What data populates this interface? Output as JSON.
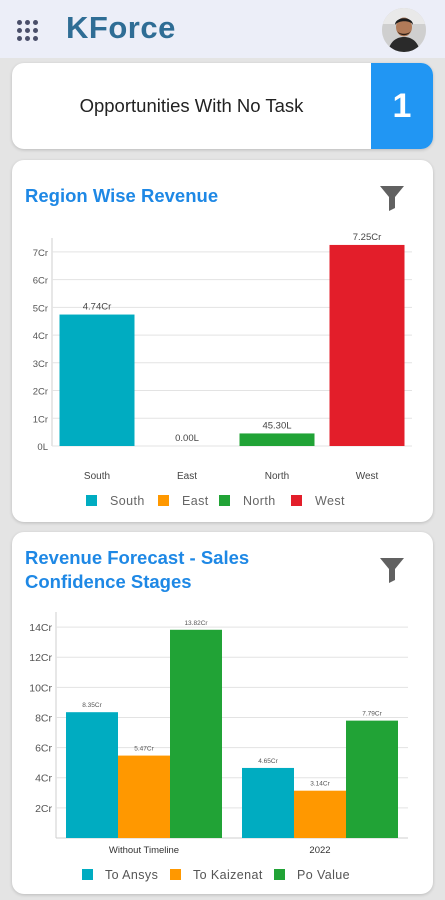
{
  "app": {
    "brand": "KForce",
    "icons": {
      "menu": "grid-menu-icon",
      "avatar": "avatar",
      "filter": "filter-icon"
    }
  },
  "opportunities": {
    "label": "Opportunities With No Task",
    "count": "1"
  },
  "region_chart": {
    "title": "Region Wise Revenue",
    "chart_data": {
      "type": "bar",
      "categories": [
        "South",
        "East",
        "North",
        "West"
      ],
      "values": [
        4.74,
        0.0,
        0.453,
        7.25
      ],
      "unit": "Cr",
      "data_labels": [
        "4.74Cr",
        "0.00L",
        "45.30L",
        "7.25Cr"
      ],
      "yticks": [
        "0L",
        "1Cr",
        "2Cr",
        "3Cr",
        "4Cr",
        "5Cr",
        "6Cr",
        "7Cr"
      ],
      "ylim": [
        0,
        7.5
      ],
      "colors": [
        "#00acc1",
        "#ff9800",
        "#21a336",
        "#e31e2a"
      ],
      "legend": [
        "South",
        "East",
        "North",
        "West"
      ],
      "legend_position": "bottom",
      "grid": true
    }
  },
  "forecast_chart": {
    "title": "Revenue Forecast - Sales Confidence Stages",
    "chart_data": {
      "type": "bar",
      "categories": [
        "Without Timeline",
        "2022"
      ],
      "series": [
        {
          "name": "To Ansys",
          "values": [
            8.35,
            4.65
          ],
          "labels": [
            "8.35Cr",
            "4.65Cr"
          ],
          "color": "#00acc1"
        },
        {
          "name": "To Kaizenat",
          "values": [
            5.47,
            3.14
          ],
          "labels": [
            "5.47Cr",
            "3.14Cr"
          ],
          "color": "#ff9800"
        },
        {
          "name": "Po Value",
          "values": [
            13.82,
            7.79
          ],
          "labels": [
            "13.82Cr",
            "7.79Cr"
          ],
          "color": "#21a336"
        }
      ],
      "yticks": [
        "2Cr",
        "4Cr",
        "6Cr",
        "8Cr",
        "10Cr",
        "12Cr",
        "14Cr"
      ],
      "ylim": [
        0,
        15
      ],
      "legend_position": "bottom",
      "grid": true
    }
  }
}
